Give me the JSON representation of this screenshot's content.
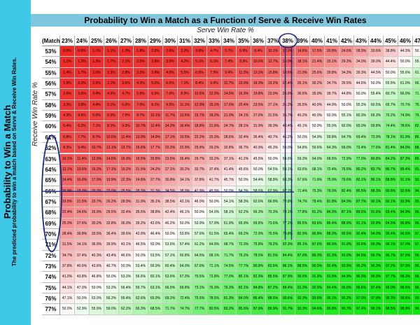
{
  "left_panel": {
    "title": "Probability to Win a Match",
    "subtitle": "The predicted probability to win a match based on Serve & Receive Win Rates."
  },
  "chart_data": {
    "type": "heatmap",
    "title": "Probability to Win a Match as a Function of Serve & Receive Win Rates",
    "xlabel": "Serve Win Rate %",
    "ylabel": "Receive Win Rate %",
    "corner_label": "(Match",
    "columns": [
      "23%",
      "24%",
      "25%",
      "26%",
      "27%",
      "28%",
      "29%",
      "30%",
      "31%",
      "32%",
      "33%",
      "34%",
      "35%",
      "36%",
      "37%",
      "38%",
      "39%",
      "40%",
      "41%",
      "42%",
      "43%",
      "44%",
      "45%",
      "46%",
      "47%"
    ],
    "rows": [
      "53%",
      "54%",
      "55%",
      "56%",
      "57%",
      "58%",
      "59%",
      "60%",
      "61%",
      "62%",
      "63%",
      "64%",
      "65%",
      "66%",
      "67%",
      "68%",
      "69%",
      "70%",
      "71%",
      "72%",
      "73%",
      "74%",
      "75%",
      "76%",
      "77%"
    ],
    "values": [
      [
        "0.0%",
        "0.9%",
        "1.1%",
        "1.1%",
        "1.3%",
        "1.8%",
        "2.2%",
        "2.6%",
        "3.2%",
        "3.9%",
        "4.7%",
        "5.7%",
        "6.9%",
        "8.4%",
        "10.1%",
        "12.0%",
        "14.6%",
        "17.5%",
        "20.8%",
        "24.6%",
        "28.9%",
        "33.6%",
        "38.8%",
        "44.3%",
        "50.0%"
      ],
      [
        "1.1%",
        "1.2%",
        "1.3%",
        "1.7%",
        "2.1%",
        "2.5%",
        "2.9%",
        "3.5%",
        "4.2%",
        "5.1%",
        "6.1%",
        "7.4%",
        "8.9%",
        "10.6%",
        "12.7%",
        "15.0%",
        "18.1%",
        "21.4%",
        "25.1%",
        "29.3%",
        "34.0%",
        "39.0%",
        "44.4%",
        "50.0%",
        "55.7%"
      ],
      [
        "1.4%",
        "1.7%",
        "2.0%",
        "2.3%",
        "2.8%",
        "3.2%",
        "3.9%",
        "4.6%",
        "5.5%",
        "6.6%",
        "7.9%",
        "9.4%",
        "11.2%",
        "13.3%",
        "15.8%",
        "18.6%",
        "21.9%",
        "25.6%",
        "29.8%",
        "34.3%",
        "39.3%",
        "44.5%",
        "50.0%",
        "55.6%",
        "61.2%"
      ],
      [
        "1.9%",
        "2.2%",
        "2.6%",
        "3.1%",
        "3.6%",
        "4.3%",
        "5.0%",
        "6.0%",
        "7.1%",
        "8.4%",
        "9.9%",
        "11.7%",
        "13.9%",
        "16.3%",
        "19.2%",
        "22.4%",
        "26.1%",
        "30.2%",
        "34.7%",
        "39.5%",
        "44.6%",
        "50.0%",
        "55.5%",
        "61.0%",
        "66.4%"
      ],
      [
        "2.6%",
        "3.0%",
        "3.4%",
        "4.0%",
        "4.7%",
        "5.5%",
        "6.5%",
        "7.6%",
        "8.9%",
        "10.5%",
        "12.3%",
        "14.5%",
        "16.9%",
        "19.8%",
        "23.0%",
        "26.6%",
        "30.6%",
        "35.0%",
        "39.7%",
        "44.8%",
        "50.0%",
        "55.4%",
        "60.7%",
        "66.0%",
        "71.1%"
      ],
      [
        "3.3%",
        "3.8%",
        "4.4%",
        "5.1%",
        "6.0%",
        "7.0%",
        "8.1%",
        "9.5%",
        "11.1%",
        "12.9%",
        "15.2%",
        "17.6%",
        "20.4%",
        "23.5%",
        "27.1%",
        "31.2%",
        "35.5%",
        "40.0%",
        "44.9%",
        "50.0%",
        "55.2%",
        "60.5%",
        "65.7%",
        "70.7%",
        "75.4%"
      ],
      [
        "4.3%",
        "4.9%",
        "5.6%",
        "6.5%",
        "7.5%",
        "8.7%",
        "10.1%",
        "11.7%",
        "13.6%",
        "15.7%",
        "18.2%",
        "21.0%",
        "24.1%",
        "27.6%",
        "31.5%",
        "35.7%",
        "40.2%",
        "45.0%",
        "50.0%",
        "55.1%",
        "60.3%",
        "65.3%",
        "70.2%",
        "74.9%",
        "79.2%"
      ],
      [
        "5.4%",
        "6.2%",
        "7.1%",
        "8.1%",
        "9.3%",
        "10.7%",
        "12.4%",
        "14.2%",
        "16.4%",
        "18.8%",
        "21.6%",
        "24.7%",
        "28.1%",
        "31.9%",
        "36.0%",
        "40.4%",
        "45.1%",
        "50.0%",
        "55.0%",
        "60.0%",
        "65.0%",
        "69.8%",
        "74.4%",
        "78.6%",
        "82.5%"
      ],
      [
        "6.8%",
        "7.7%",
        "8.7%",
        "10.0%",
        "11.4%",
        "13.0%",
        "14.9%",
        "17.1%",
        "19.5%",
        "22.2%",
        "25.3%",
        "28.6%",
        "32.4%",
        "36.4%",
        "40.7%",
        "45.2%",
        "50.0%",
        "54.9%",
        "59.8%",
        "64.7%",
        "69.4%",
        "73.9%",
        "78.1%",
        "81.9%",
        "85.4%"
      ],
      [
        "8.3%",
        "9.4%",
        "10.7%",
        "12.1%",
        "13.7%",
        "15.6%",
        "17.7%",
        "20.2%",
        "22.9%",
        "25.9%",
        "29.2%",
        "32.8%",
        "36.7%",
        "40.9%",
        "45.3%",
        "50.0%",
        "54.8%",
        "59.6%",
        "64.3%",
        "69.0%",
        "73.4%",
        "77.6%",
        "81.4%",
        "84.9%",
        "88.0%"
      ],
      [
        "10.1%",
        "11.4%",
        "12.9%",
        "14.5%",
        "16.3%",
        "18.5%",
        "20.8%",
        "23.5%",
        "26.4%",
        "29.7%",
        "33.2%",
        "37.1%",
        "41.2%",
        "45.5%",
        "50.0%",
        "54.6%",
        "59.3%",
        "64.0%",
        "68.5%",
        "72.9%",
        "77.0%",
        "80.8%",
        "84.2%",
        "87.3%",
        "89.9%"
      ],
      [
        "12.1%",
        "13.6%",
        "15.2%",
        "17.1%",
        "19.2%",
        "21.5%",
        "24.2%",
        "27.1%",
        "30.2%",
        "33.7%",
        "37.4%",
        "41.4%",
        "45.6%",
        "50.0%",
        "54.5%",
        "59.1%",
        "63.6%",
        "68.1%",
        "72.4%",
        "76.5%",
        "80.2%",
        "83.7%",
        "86.7%",
        "89.4%",
        "91.6%"
      ],
      [
        "14.4%",
        "16.0%",
        "17.9%",
        "19.9%",
        "22.3%",
        "24.8%",
        "27.7%",
        "30.8%",
        "34.1%",
        "37.8%",
        "41.7%",
        "45.7%",
        "50.0%",
        "54.4%",
        "58.8%",
        "63.3%",
        "67.6%",
        "71.9%",
        "75.9%",
        "79.6%",
        "83.1%",
        "86.1%",
        "88.8%",
        "91.1%",
        "93.1%"
      ],
      [
        "16.9%",
        "18.7%",
        "20.7%",
        "23.0%",
        "25.5%",
        "28.3%",
        "31.3%",
        "34.5%",
        "38.0%",
        "41.9%",
        "45.9%",
        "50.0%",
        "54.3%",
        "58.6%",
        "62.9%",
        "67.2%",
        "71.4%",
        "75.3%",
        "79.0%",
        "82.4%",
        "85.5%",
        "88.3%",
        "90.6%",
        "92.6%",
        "94.3%"
      ],
      [
        "19.5%",
        "21.5%",
        "23.7%",
        "26.2%",
        "28.9%",
        "31.9%",
        "35.1%",
        "38.5%",
        "42.1%",
        "46.0%",
        "50.0%",
        "54.1%",
        "58.3%",
        "62.6%",
        "66.8%",
        "70.8%",
        "74.7%",
        "78.4%",
        "81.8%",
        "84.9%",
        "87.7%",
        "90.1%",
        "92.1%",
        "93.9%",
        "95.3%"
      ],
      [
        "22.4%",
        "24.6%",
        "26.9%",
        "29.5%",
        "32.4%",
        "35.5%",
        "38.8%",
        "42.4%",
        "46.1%",
        "50.0%",
        "54.0%",
        "58.1%",
        "62.2%",
        "66.3%",
        "70.3%",
        "74.1%",
        "77.8%",
        "81.2%",
        "84.3%",
        "87.1%",
        "89.5%",
        "91.6%",
        "93.4%",
        "94.9%",
        "96.1%"
      ],
      [
        "25.3%",
        "27.6%",
        "30.2%",
        "32.8%",
        "36.0%",
        "39.2%",
        "42.6%",
        "46.2%",
        "50.0%",
        "53.9%",
        "57.9%",
        "61.9%",
        "65.9%",
        "69.8%",
        "73.6%",
        "77.1%",
        "80.5%",
        "83.6%",
        "86.4%",
        "88.9%",
        "91.1%",
        "92.9%",
        "94.5%",
        "95.8%",
        "96.8%"
      ],
      [
        "28.4%",
        "30.8%",
        "33.5%",
        "36.4%",
        "39.6%",
        "42.9%",
        "46.4%",
        "50.0%",
        "53.8%",
        "57.6%",
        "61.5%",
        "65.4%",
        "69.2%",
        "72.9%",
        "76.5%",
        "79.8%",
        "82.9%",
        "85.8%",
        "88.3%",
        "90.5%",
        "92.4%",
        "94.0%",
        "95.4%",
        "96.5%",
        "97.4%"
      ],
      [
        "31.5%",
        "34.1%",
        "36.9%",
        "39.9%",
        "43.1%",
        "46.5%",
        "50.0%",
        "53.6%",
        "57.4%",
        "61.2%",
        "64.9%",
        "68.7%",
        "72.3%",
        "75.8%",
        "79.2%",
        "82.3%",
        "85.1%",
        "87.6%",
        "89.9%",
        "91.9%",
        "93.6%",
        "95.0%",
        "96.1%",
        "97.0%",
        "97.8%"
      ],
      [
        "34.7%",
        "37.4%",
        "40.3%",
        "43.4%",
        "46.6%",
        "50.0%",
        "53.5%",
        "57.1%",
        "60.8%",
        "64.5%",
        "68.1%",
        "71.7%",
        "75.2%",
        "78.5%",
        "81.5%",
        "84.4%",
        "87.0%",
        "89.3%",
        "91.3%",
        "93.0%",
        "94.5%",
        "95.7%",
        "96.7%",
        "97.5%",
        "98.2%"
      ],
      [
        "37.8%",
        "40.6%",
        "43.6%",
        "46.7%",
        "50.0%",
        "53.4%",
        "56.9%",
        "60.4%",
        "64.0%",
        "67.6%",
        "71.1%",
        "74.5%",
        "77.7%",
        "80.8%",
        "83.6%",
        "86.1%",
        "88.5%",
        "90.5%",
        "92.4%",
        "93.9%",
        "95.2%",
        "96.3%",
        "97.2%",
        "97.9%",
        "98.4%"
      ],
      [
        "41.0%",
        "43.8%",
        "46.8%",
        "50.0%",
        "53.3%",
        "56.6%",
        "60.1%",
        "63.6%",
        "67.0%",
        "70.5%",
        "73.8%",
        "77.0%",
        "80.1%",
        "82.9%",
        "85.5%",
        "87.9%",
        "90.0%",
        "91.9%",
        "93.5%",
        "94.9%",
        "96.0%",
        "96.9%",
        "97.7%",
        "98.3%",
        "98.8%"
      ],
      [
        "44.1%",
        "47.0%",
        "50.0%",
        "53.2%",
        "56.4%",
        "59.7%",
        "63.1%",
        "66.5%",
        "69.8%",
        "73.1%",
        "76.3%",
        "79.3%",
        "82.1%",
        "84.8%",
        "87.2%",
        "89.4%",
        "91.3%",
        "92.9%",
        "94.4%",
        "95.6%",
        "96.6%",
        "97.4%",
        "98.0%",
        "98.5%",
        "98.9%"
      ],
      [
        "47.1%",
        "50.0%",
        "53.0%",
        "56.2%",
        "59.4%",
        "62.6%",
        "65.9%",
        "69.2%",
        "72.4%",
        "75.5%",
        "78.5%",
        "81.3%",
        "84.0%",
        "86.4%",
        "88.6%",
        "90.6%",
        "92.3%",
        "93.8%",
        "95.1%",
        "96.2%",
        "97.0%",
        "97.8%",
        "98.3%",
        "98.8%",
        "99.1%"
      ],
      [
        "50.0%",
        "52.9%",
        "55.9%",
        "59.0%",
        "62.2%",
        "65.3%",
        "68.5%",
        "71.7%",
        "74.7%",
        "77.7%",
        "80.5%",
        "83.2%",
        "85.6%",
        "87.9%",
        "89.9%",
        "91.7%",
        "93.3%",
        "94.6%",
        "95.8%",
        "96.7%",
        "97.4%",
        "98.1%",
        "98.5%",
        "98.9%",
        "99.2%"
      ]
    ],
    "grid": true,
    "highlights": [
      "38% column circled",
      "62%–70% rows circled",
      "66% row struck through"
    ]
  }
}
